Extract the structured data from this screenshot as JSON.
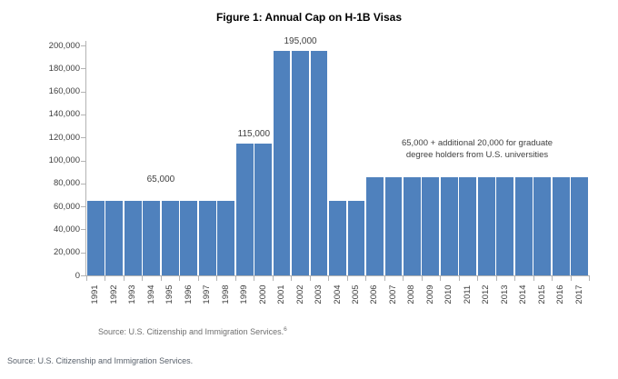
{
  "figure": {
    "title": "Figure 1: Annual Cap on H-1B Visas"
  },
  "chart_data": {
    "type": "bar",
    "title": "Figure 1: Annual Cap on H-1B Visas",
    "categories": [
      "1991",
      "1992",
      "1993",
      "1994",
      "1995",
      "1996",
      "1997",
      "1998",
      "1999",
      "2000",
      "2001",
      "2002",
      "2003",
      "2004",
      "2005",
      "2006",
      "2007",
      "2008",
      "2009",
      "2010",
      "2011",
      "2012",
      "2013",
      "2014",
      "2015",
      "2016",
      "2017"
    ],
    "values": [
      65000,
      65000,
      65000,
      65000,
      65000,
      65000,
      65000,
      65000,
      115000,
      115000,
      195000,
      195000,
      195000,
      65000,
      65000,
      85000,
      85000,
      85000,
      85000,
      85000,
      85000,
      85000,
      85000,
      85000,
      85000,
      85000,
      85000
    ],
    "xlabel": "",
    "ylabel": "",
    "ylim": [
      0,
      200000
    ],
    "ytick_step": 20000,
    "grid": "off",
    "legend": "none",
    "bar_color": "#4f81bd",
    "axis_color": "#b3b3b3",
    "text_color": "#404040",
    "data_labels": [
      {
        "text": "65,000",
        "categories": [
          "1994",
          "1995"
        ]
      },
      {
        "text": "115,000",
        "categories": [
          "1999",
          "2000"
        ]
      },
      {
        "text": "195,000",
        "categories": [
          "2001",
          "2002",
          "2003"
        ]
      }
    ],
    "annotation": {
      "lines": [
        "65,000 + additional 20,000 for graduate",
        "degree holders from U.S. universities"
      ]
    },
    "source_note": "Source: U.S. Citizenship and Immigration Services.",
    "source_note_superscript": "6"
  },
  "footer": {
    "source": "Source: U.S. Citizenship and Immigration Services."
  }
}
